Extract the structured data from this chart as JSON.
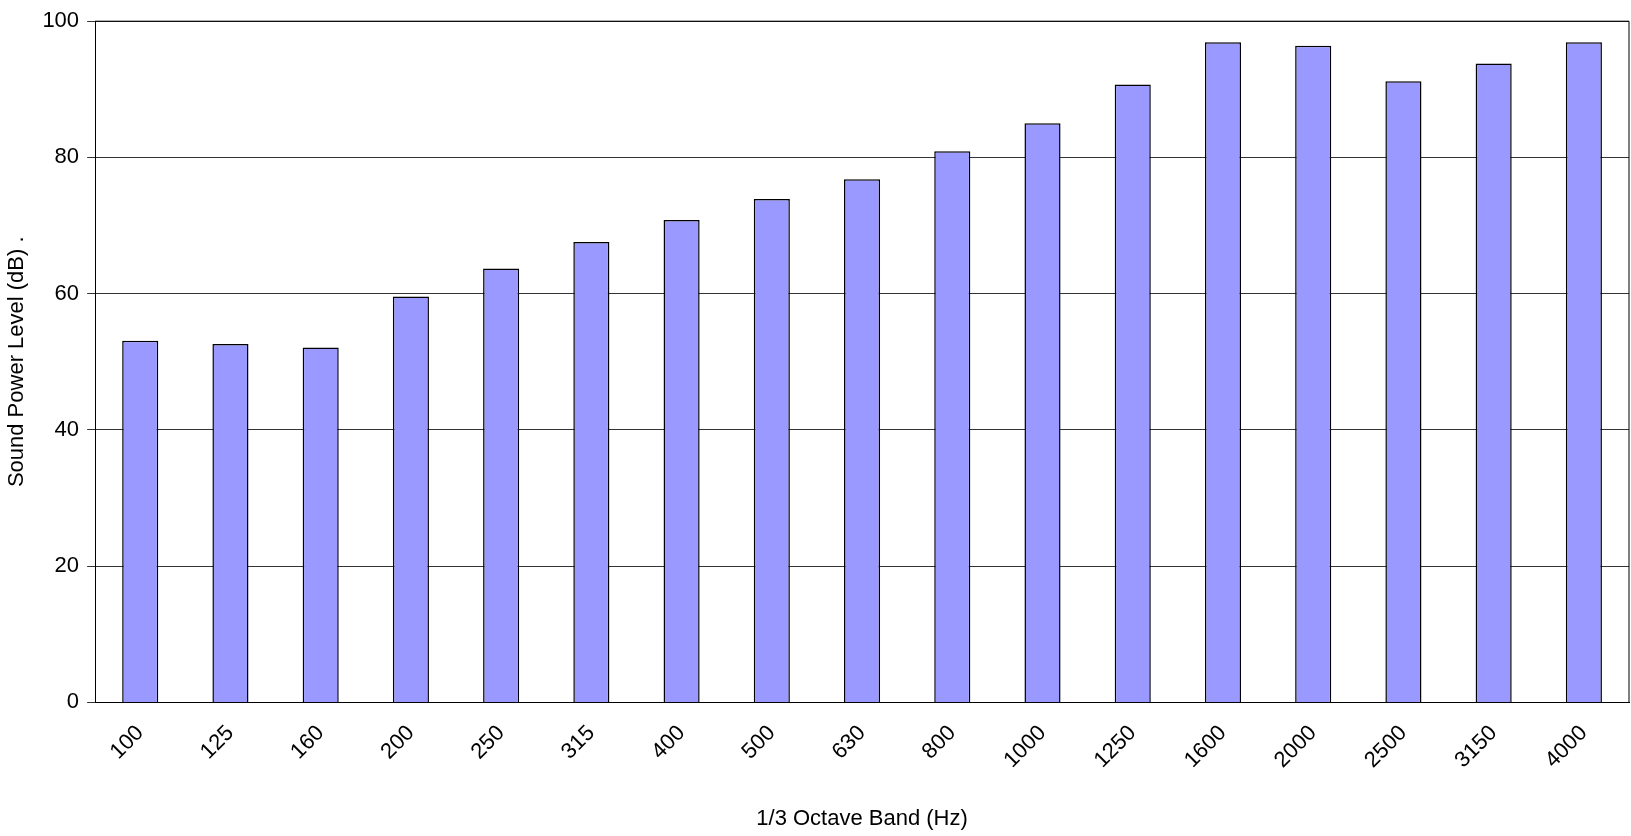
{
  "chart_data": {
    "type": "bar",
    "xlabel": "1/3 Octave Band (Hz)",
    "ylabel": "Sound Power Level (dB) .",
    "categories": [
      "100",
      "125",
      "160",
      "200",
      "250",
      "315",
      "400",
      "500",
      "630",
      "800",
      "1000",
      "1250",
      "1600",
      "2000",
      "2500",
      "3150",
      "4000"
    ],
    "values": [
      53.1,
      52.6,
      52.1,
      59.6,
      63.7,
      67.6,
      70.8,
      73.9,
      76.8,
      80.9,
      85.0,
      90.7,
      96.9,
      96.4,
      91.2,
      93.8,
      96.9
    ],
    "color": "#9999ff",
    "ylim": [
      0,
      100
    ],
    "yticks": [
      0,
      20,
      40,
      60,
      80,
      100
    ],
    "grid": "y"
  }
}
